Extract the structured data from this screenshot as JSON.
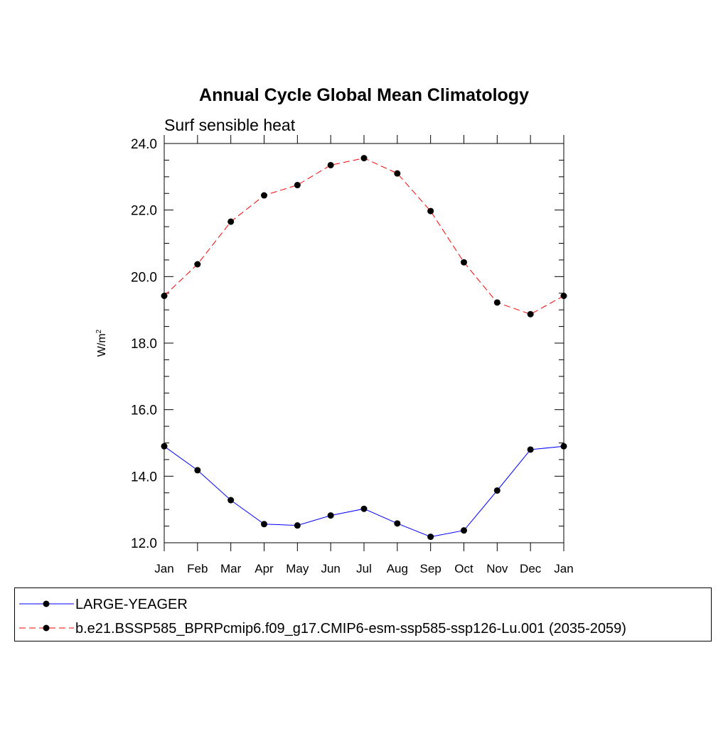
{
  "chart_data": {
    "type": "line",
    "title": "Annual Cycle Global Mean Climatology",
    "subtitle": "Surf sensible heat",
    "ylabel": "W/m",
    "ylabel_sup": "2",
    "ylim": [
      12.0,
      24.0
    ],
    "yticks": [
      "12.0",
      "14.0",
      "16.0",
      "18.0",
      "20.0",
      "22.0",
      "24.0"
    ],
    "categories": [
      "Jan",
      "Feb",
      "Mar",
      "Apr",
      "May",
      "Jun",
      "Jul",
      "Aug",
      "Sep",
      "Oct",
      "Nov",
      "Dec",
      "Jan"
    ],
    "legend_position": "bottom",
    "series": [
      {
        "name": "LARGE-YEAGER",
        "color": "#0000ff",
        "dash": "solid",
        "values": [
          14.9,
          14.18,
          13.28,
          12.56,
          12.52,
          12.82,
          13.02,
          12.58,
          12.18,
          12.37,
          13.57,
          14.8,
          14.9
        ]
      },
      {
        "name": "b.e21.BSSP585_BPRPcmip6.f09_g17.CMIP6-esm-ssp585-ssp126-Lu.001 (2035-2059)",
        "color": "#ff0000",
        "dash": "dashed",
        "values": [
          19.42,
          20.37,
          21.65,
          22.44,
          22.75,
          23.35,
          23.56,
          23.1,
          21.97,
          20.43,
          19.22,
          18.87,
          19.42
        ]
      }
    ]
  }
}
